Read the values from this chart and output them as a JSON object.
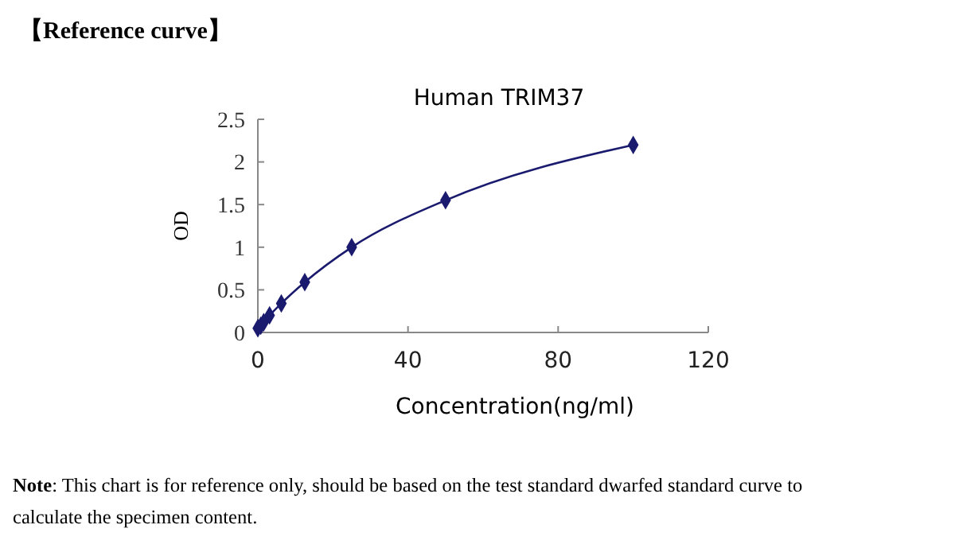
{
  "chart_data": {
    "type": "line",
    "title": "Human TRIM37",
    "xlabel": "Concentration(ng/ml)",
    "ylabel": "OD",
    "annotations": [
      "【Reference curve】",
      "Note: This chart is for reference only, should be based on the test standard dwarfed standard curve to calculate the specimen content."
    ],
    "x": [
      0,
      0.78,
      1.56,
      3.12,
      6.25,
      12.5,
      25,
      50,
      100
    ],
    "series": [
      {
        "color": "#1a1a6e",
        "values": [
          0.05,
          0.08,
          0.12,
          0.2,
          0.34,
          0.59,
          1.0,
          1.55,
          2.2
        ]
      }
    ],
    "xlim": [
      0,
      120
    ],
    "xticks": [
      0,
      40,
      80,
      120
    ],
    "ylim": [
      0,
      2.5
    ],
    "yticks": [
      0,
      0.5,
      1,
      1.5,
      2,
      2.5
    ],
    "marker": "diamond",
    "line_style": "solid"
  }
}
